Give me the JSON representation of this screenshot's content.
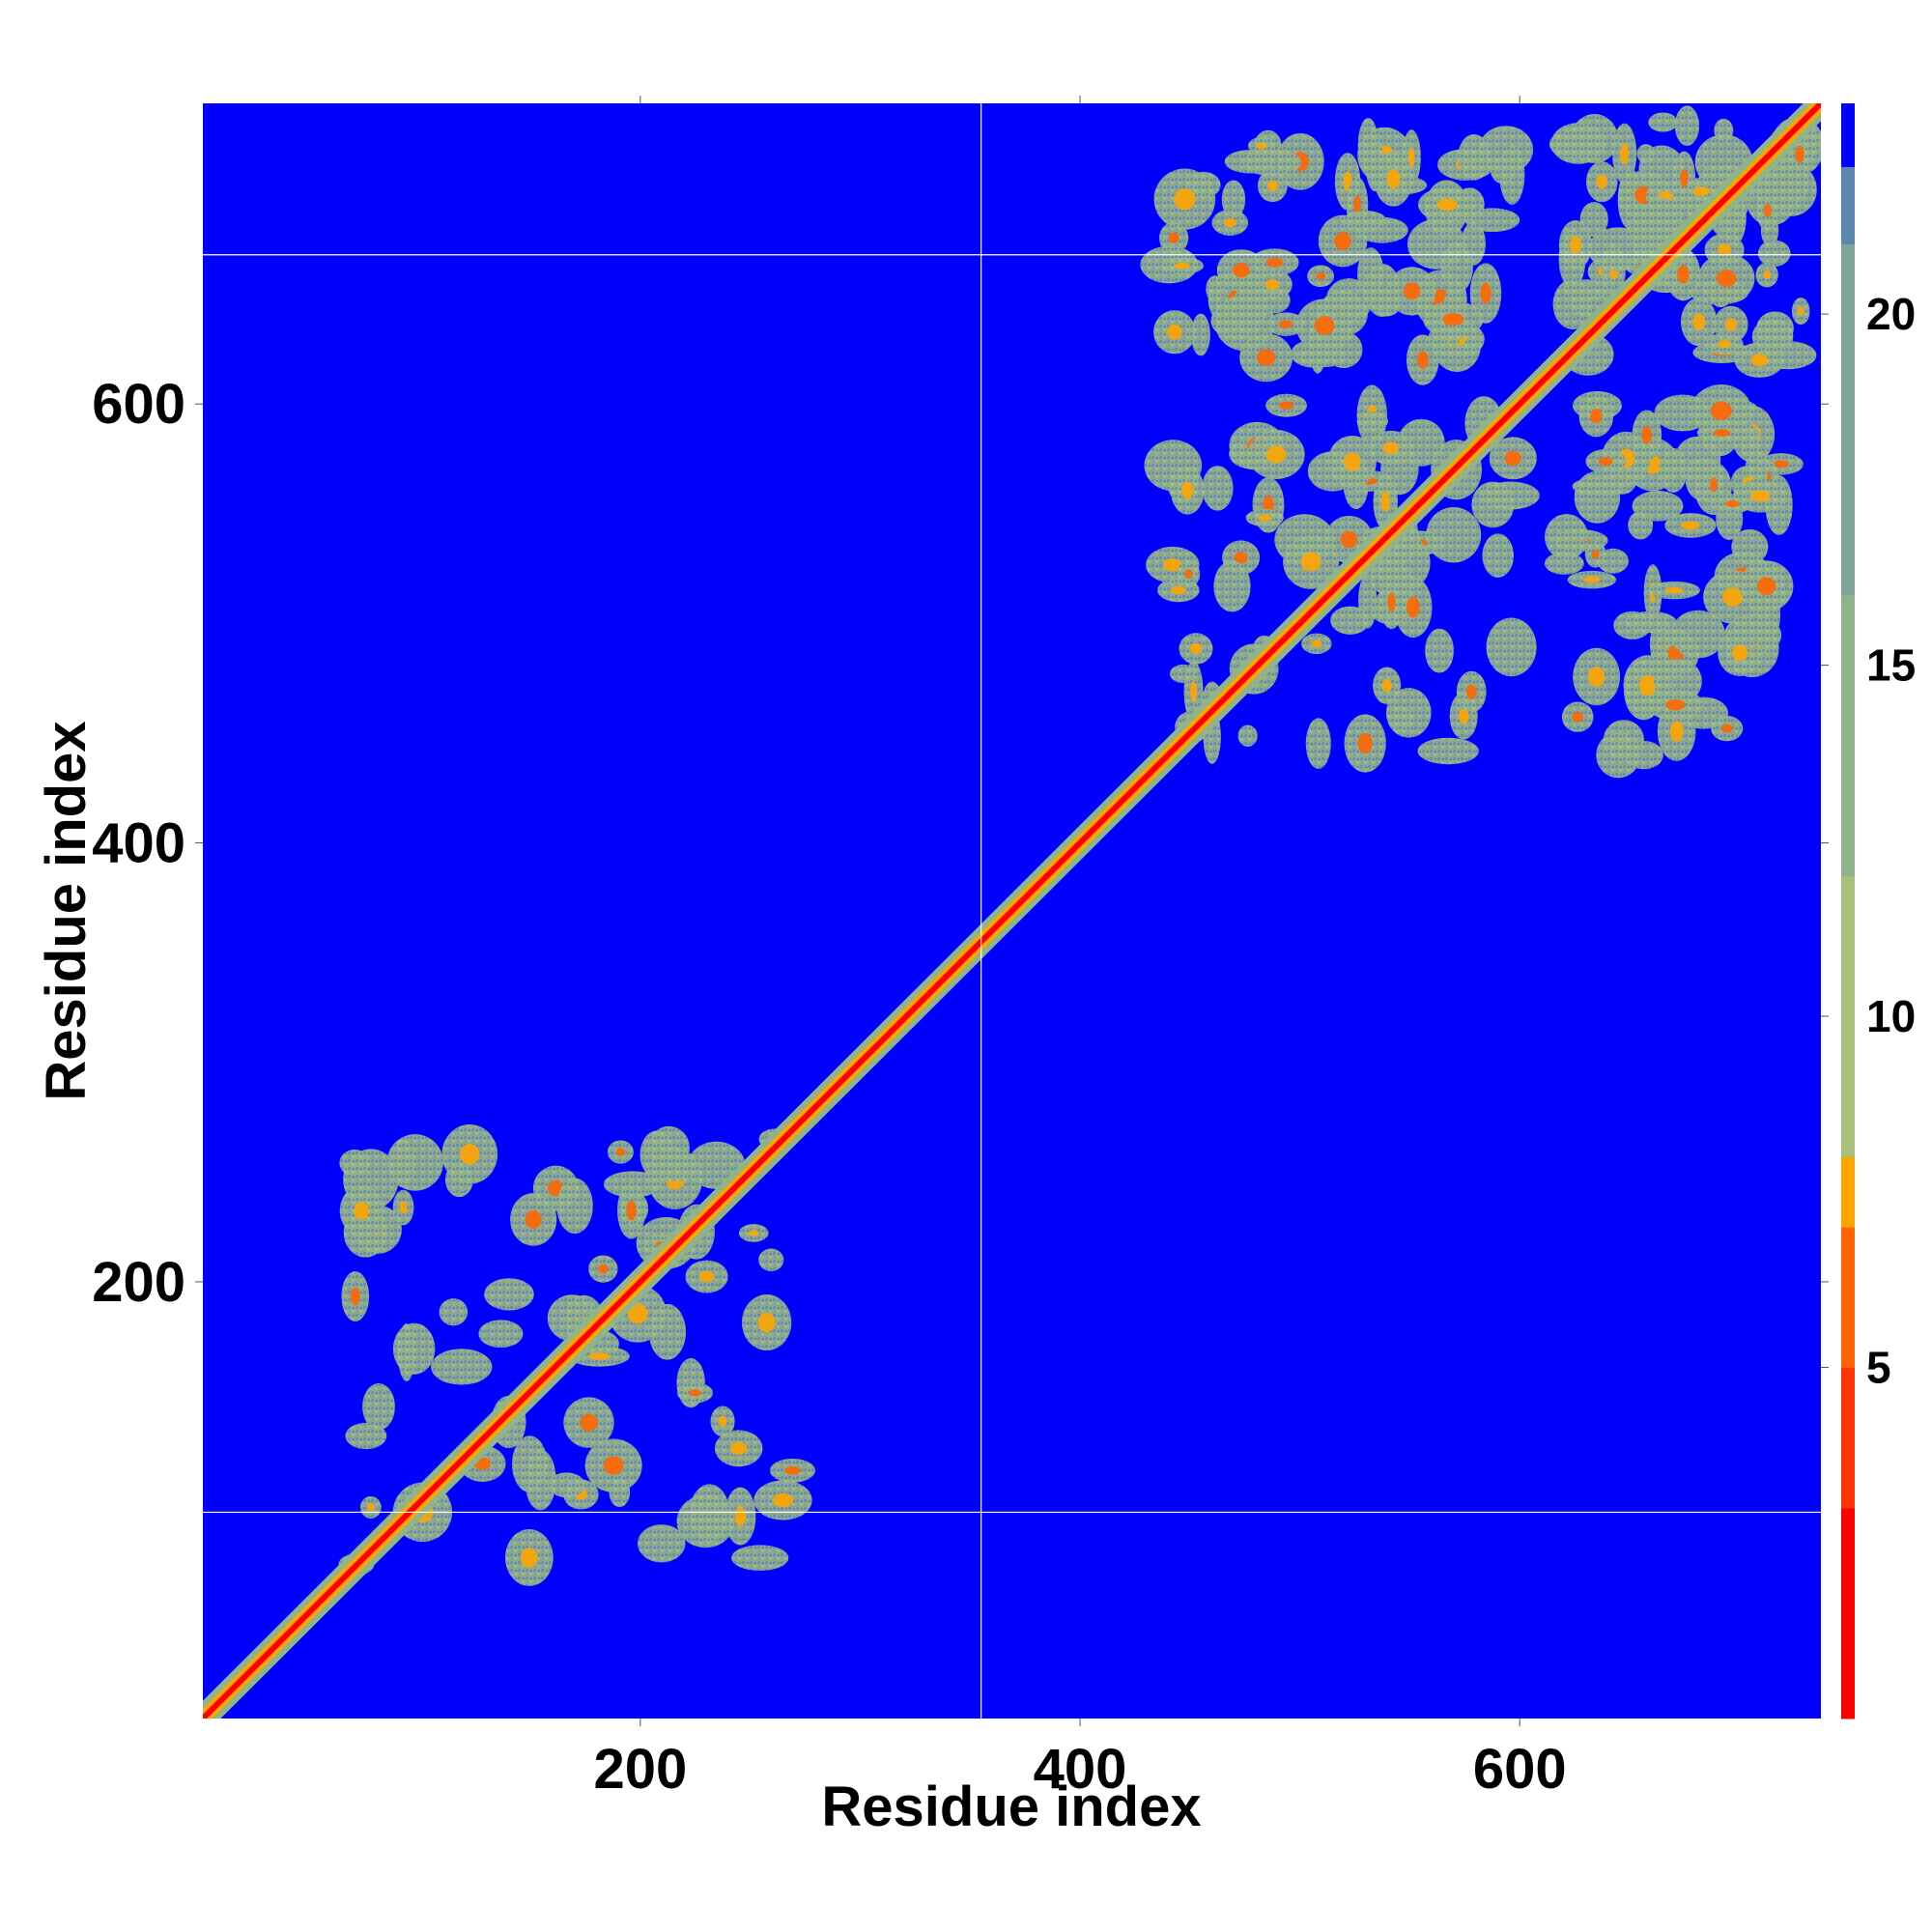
{
  "chart_data": {
    "type": "heatmap",
    "title": "",
    "xlabel": "Residue index",
    "ylabel": "Residue index",
    "xlim": [
      1,
      737
    ],
    "ylim": [
      1,
      737
    ],
    "x_ticks": [
      200,
      400,
      600
    ],
    "y_ticks": [
      200,
      400,
      600
    ],
    "x_tick_labels": [
      "200",
      "400",
      "600"
    ],
    "y_tick_labels": [
      "200",
      "400",
      "600"
    ],
    "colorbar": {
      "range": [
        0,
        23
      ],
      "ticks": [
        5,
        10,
        15,
        20
      ],
      "tick_labels": [
        "5",
        "10",
        "15",
        "20"
      ],
      "stops": [
        {
          "value": 0,
          "color": "#ff0000"
        },
        {
          "value": 3,
          "color": "#ff3300"
        },
        {
          "value": 5,
          "color": "#ff6600"
        },
        {
          "value": 7,
          "color": "#ffa500"
        },
        {
          "value": 8,
          "color": "#a8c078"
        },
        {
          "value": 12,
          "color": "#8fb38a"
        },
        {
          "value": 16,
          "color": "#7fa59a"
        },
        {
          "value": 21,
          "color": "#5a86b0"
        },
        {
          "value": 22.1,
          "color": "#0000ff"
        },
        {
          "value": 23,
          "color": "#0000ff"
        }
      ]
    },
    "background_color": "#0000ff",
    "divider_lines": {
      "x": [
        355
      ],
      "y": [
        95,
        668
      ],
      "color": "#ffffff"
    },
    "diagonal": {
      "from": 1,
      "to": 737,
      "color": "#ff0000"
    },
    "domain_blocks": [
      {
        "x": [
          70,
          270
        ],
        "y": [
          70,
          270
        ]
      },
      {
        "x": [
          440,
          600
        ],
        "y": [
          440,
          600
        ]
      },
      {
        "x": [
          620,
          730
        ],
        "y": [
          620,
          730
        ]
      }
    ],
    "off_diagonal_blocks": [
      {
        "x": [
          440,
          600
        ],
        "y": [
          620,
          720
        ]
      },
      {
        "x": [
          620,
          720
        ],
        "y": [
          440,
          600
        ]
      }
    ]
  }
}
